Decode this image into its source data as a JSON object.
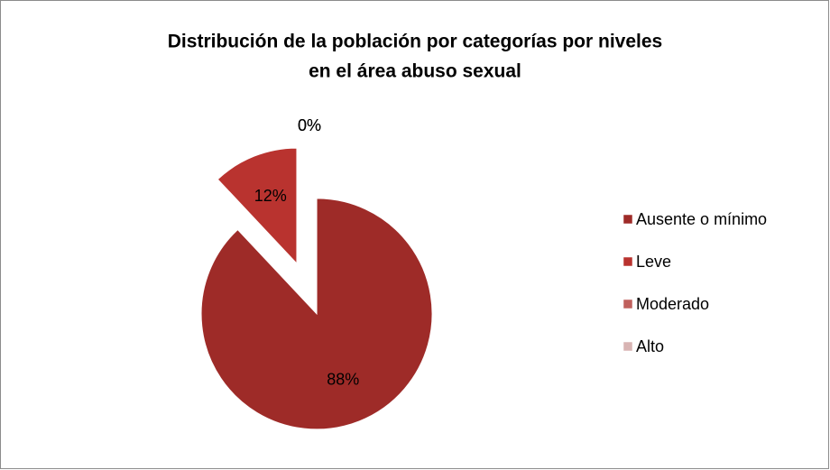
{
  "chart_data": {
    "type": "pie",
    "title": [
      "Distribución de la población por categorías por niveles",
      "en el área abuso sexual"
    ],
    "categories": [
      "Ausente o mínimo",
      "Leve",
      "Moderado",
      "Alto"
    ],
    "values": [
      88,
      12,
      0,
      0
    ],
    "value_labels": [
      "88%",
      "12%",
      "0%",
      "0%"
    ],
    "colors": [
      "#9e2b28",
      "#b9332f",
      "#c0605d",
      "#d8b4b3"
    ],
    "legend": "right"
  }
}
